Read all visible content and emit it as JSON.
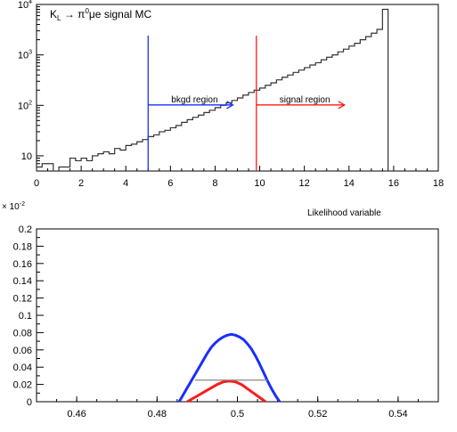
{
  "chart_data": [
    {
      "type": "line",
      "title": "Kₗ → π⁰μe signal MC",
      "title_parts": {
        "main": "K",
        "sub": "L",
        "arrow": "→",
        "pi": "π",
        "sup": "0",
        "rest": "μe signal MC"
      },
      "xlabel": "Likelihood variable",
      "ylabel": "",
      "xlim": [
        0,
        18
      ],
      "ylim": [
        5,
        10000
      ],
      "yscale": "log",
      "x_ticks": [
        "0",
        "2",
        "4",
        "6",
        "8",
        "10",
        "12",
        "14",
        "16",
        "18"
      ],
      "y_ticks": [
        {
          "value": 10,
          "base": "10",
          "exp": ""
        },
        {
          "value": 100,
          "base": "10",
          "exp": "2"
        },
        {
          "value": 1000,
          "base": "10",
          "exp": "3"
        },
        {
          "value": 10000,
          "base": "10",
          "exp": "4"
        }
      ],
      "series": [
        {
          "color": "#333333",
          "step": true,
          "x": [
            0,
            0.25,
            0.5,
            0.75,
            1,
            1.25,
            1.5,
            1.75,
            2,
            2.25,
            2.5,
            2.75,
            3,
            3.25,
            3.5,
            3.75,
            4,
            4.25,
            4.5,
            4.75,
            5,
            5.25,
            5.5,
            5.75,
            6,
            6.25,
            6.5,
            6.75,
            7,
            7.25,
            7.5,
            7.75,
            8,
            8.25,
            8.5,
            8.75,
            9,
            9.25,
            9.5,
            9.75,
            10,
            10.25,
            10.5,
            10.75,
            11,
            11.25,
            11.5,
            11.75,
            12,
            12.25,
            12.5,
            12.75,
            13,
            13.25,
            13.5,
            13.75,
            14,
            14.25,
            14.5,
            14.75,
            15,
            15.25,
            15.5,
            15.75
          ],
          "values": [
            6,
            7,
            7,
            5,
            6,
            6,
            9,
            8,
            9,
            8,
            10,
            11,
            12,
            11,
            14,
            13,
            16,
            17,
            19,
            21,
            24,
            26,
            30,
            32,
            36,
            40,
            46,
            52,
            58,
            64,
            72,
            80,
            90,
            100,
            112,
            125,
            140,
            160,
            180,
            200,
            220,
            250,
            280,
            320,
            360,
            400,
            450,
            500,
            560,
            630,
            700,
            800,
            900,
            1000,
            1150,
            1300,
            1500,
            1700,
            2000,
            2300,
            2700,
            3200,
            8000,
            5
          ]
        }
      ],
      "annotations": [
        {
          "text": "bkgd region",
          "x": 5,
          "color": "#1a2eff",
          "arrow_to": 8.8,
          "y": 180
        },
        {
          "text": "signal region",
          "x": 9.85,
          "color": "#ff1a1a",
          "arrow_to": 13.8,
          "y": 180
        }
      ],
      "vlines": [
        {
          "x": 5,
          "color": "#1a2eff"
        },
        {
          "x": 9.85,
          "color": "#ff1a1a"
        }
      ]
    },
    {
      "type": "line",
      "title": "",
      "xlabel": "",
      "ylabel": "",
      "y_multiplier": {
        "base": "× 10",
        "exp": "-2"
      },
      "xlim": [
        0.45,
        0.55
      ],
      "ylim": [
        0,
        0.2
      ],
      "x_ticks": [
        "0.46",
        "0.48",
        "0.5",
        "0.52",
        "0.54"
      ],
      "y_ticks": [
        "0",
        "0.02",
        "0.04",
        "0.06",
        "0.08",
        "0.1",
        "0.12",
        "0.14",
        "0.16",
        "0.18",
        "0.2"
      ],
      "series": [
        {
          "color": "#1a2eff",
          "x": [
            0.4855,
            0.4865,
            0.4875,
            0.4885,
            0.4895,
            0.4905,
            0.4915,
            0.4925,
            0.4935,
            0.4945,
            0.4955,
            0.4965,
            0.4975,
            0.4985,
            0.4995,
            0.5005,
            0.5015,
            0.5025,
            0.5035,
            0.5045,
            0.5055,
            0.5065,
            0.5075,
            0.5085,
            0.5095,
            0.5105
          ],
          "values": [
            0.0,
            0.008,
            0.016,
            0.024,
            0.032,
            0.04,
            0.048,
            0.056,
            0.063,
            0.068,
            0.072,
            0.075,
            0.077,
            0.078,
            0.077,
            0.075,
            0.072,
            0.067,
            0.061,
            0.053,
            0.044,
            0.034,
            0.024,
            0.015,
            0.007,
            0.0
          ]
        },
        {
          "color": "#ff1a1a",
          "x": [
            0.4875,
            0.489,
            0.4905,
            0.492,
            0.4935,
            0.495,
            0.4965,
            0.498,
            0.4995,
            0.501,
            0.5025,
            0.504,
            0.5055,
            0.507
          ],
          "values": [
            0.0,
            0.004,
            0.008,
            0.012,
            0.016,
            0.02,
            0.023,
            0.024,
            0.023,
            0.02,
            0.015,
            0.01,
            0.005,
            0.0
          ]
        },
        {
          "color": "#888888",
          "x": [
            0.4895,
            0.5075
          ],
          "values": [
            0.025,
            0.025
          ]
        }
      ]
    }
  ]
}
